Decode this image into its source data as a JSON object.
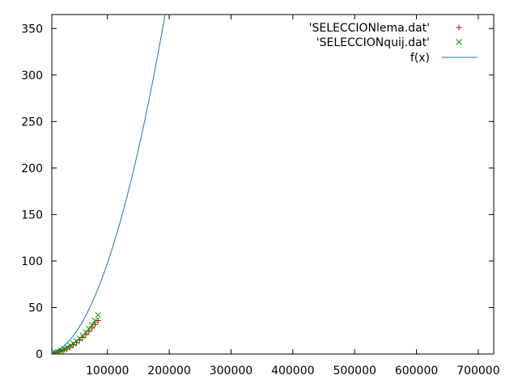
{
  "chart_data": {
    "type": "scatter",
    "title": "",
    "xlabel": "",
    "ylabel": "",
    "xlim": [
      10000,
      725000
    ],
    "ylim": [
      0,
      365
    ],
    "x_ticks": [
      {
        "value": 100000,
        "label": "100000"
      },
      {
        "value": 200000,
        "label": "200000"
      },
      {
        "value": 300000,
        "label": "300000"
      },
      {
        "value": 400000,
        "label": "400000"
      },
      {
        "value": 500000,
        "label": "500000"
      },
      {
        "value": 600000,
        "label": "600000"
      },
      {
        "value": 700000,
        "label": "700000"
      }
    ],
    "y_ticks": [
      {
        "value": 0,
        "label": "0"
      },
      {
        "value": 50,
        "label": "50"
      },
      {
        "value": 100,
        "label": "100"
      },
      {
        "value": 150,
        "label": "150"
      },
      {
        "value": 200,
        "label": "200"
      },
      {
        "value": 250,
        "label": "250"
      },
      {
        "value": 300,
        "label": "300"
      },
      {
        "value": 350,
        "label": "350"
      }
    ],
    "grid": false,
    "legend_position": "top-right",
    "series": [
      {
        "name": "'SELECCIONlema.dat'",
        "kind": "points",
        "marker": "plus",
        "color": "#cc0000",
        "x": [
          10000,
          15000,
          20000,
          25000,
          30000,
          35000,
          40000,
          45000,
          50000,
          55000,
          60000,
          65000,
          70000,
          75000,
          80000,
          85000
        ],
        "y": [
          0.5,
          1.3,
          2.2,
          3.3,
          4.6,
          6.1,
          7.9,
          10.0,
          12.3,
          14.9,
          17.8,
          20.9,
          24.2,
          27.9,
          31.9,
          36.0
        ]
      },
      {
        "name": "'SELECCIONquij.dat'",
        "kind": "points",
        "marker": "cross",
        "color": "#009900",
        "x": [
          10000,
          15000,
          20000,
          25000,
          30000,
          35000,
          40000,
          45000,
          50000,
          55000,
          60000,
          65000,
          70000,
          75000,
          80000,
          85000
        ],
        "y": [
          0.6,
          1.5,
          2.5,
          3.8,
          5.3,
          7.0,
          9.0,
          11.3,
          13.9,
          16.8,
          20.0,
          23.4,
          27.2,
          31.3,
          36.0,
          42.0
        ]
      },
      {
        "name": "f(x)",
        "kind": "line",
        "color": "#1177bb",
        "x": [
          10000,
          20000,
          30000,
          40000,
          50000,
          60000,
          70000,
          80000,
          90000,
          100000,
          110000,
          120000,
          130000,
          140000,
          150000,
          160000,
          170000,
          180000,
          190000,
          195000
        ],
        "y": [
          1.0,
          3.9,
          8.8,
          15.6,
          24.4,
          35.1,
          47.8,
          62.5,
          79.0,
          97.6,
          118.1,
          140.6,
          165.0,
          191.3,
          219.6,
          249.9,
          282.1,
          316.3,
          352.4,
          371.2
        ]
      }
    ]
  }
}
